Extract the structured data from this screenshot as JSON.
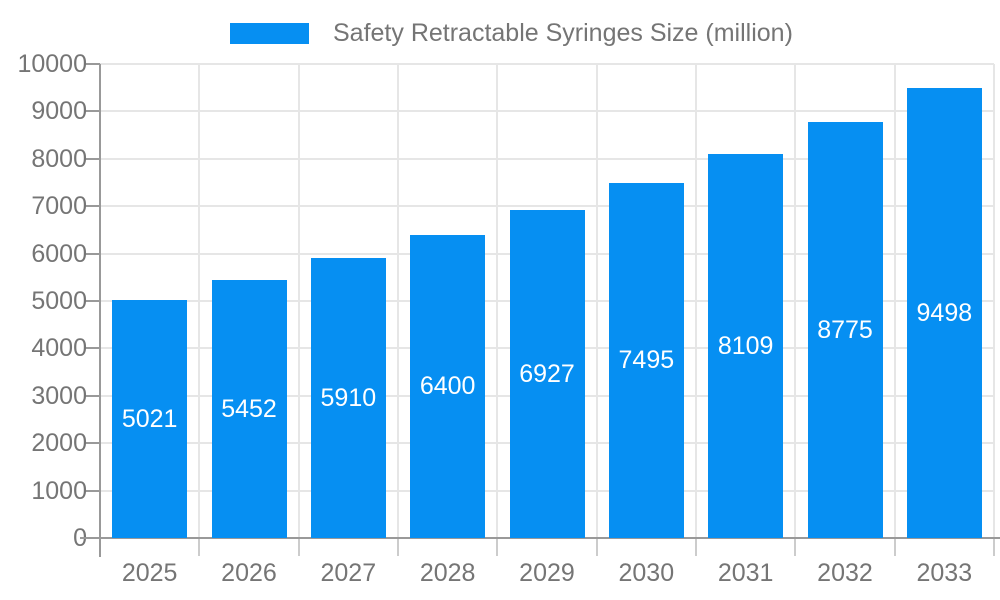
{
  "legend": {
    "label": "Safety Retractable Syringes Size (million)"
  },
  "chart_data": {
    "type": "bar",
    "title": "Safety Retractable Syringes Size (million)",
    "xlabel": "",
    "ylabel": "",
    "categories": [
      "2025",
      "2026",
      "2027",
      "2028",
      "2029",
      "2030",
      "2031",
      "2032",
      "2033"
    ],
    "values": [
      5021,
      5452,
      5910,
      6400,
      6927,
      7495,
      8109,
      8775,
      9498
    ],
    "bar_labels": [
      5021,
      5452,
      5910,
      6400,
      6927,
      7495,
      8109,
      8775,
      9498
    ],
    "ylim": [
      0,
      10000
    ],
    "ytick_step": 1000,
    "yticks": [
      0,
      1000,
      2000,
      3000,
      4000,
      5000,
      6000,
      7000,
      8000,
      9000,
      10000
    ],
    "grid": true,
    "legend_position": "top",
    "colors": {
      "bar": "#068ff2",
      "bar_label_text": "#ffffff",
      "axis_text": "#757575",
      "axis_line": "#999999",
      "gridline": "#e6e6e6",
      "category_tick": "#cccccc",
      "background": "#ffffff"
    }
  }
}
